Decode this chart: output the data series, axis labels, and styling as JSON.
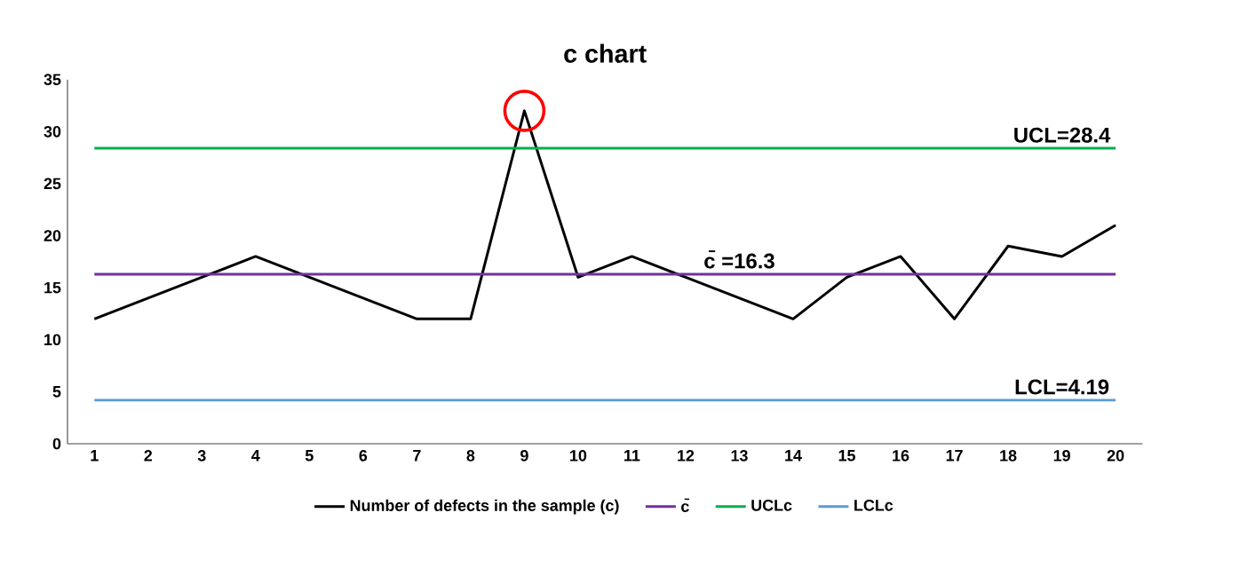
{
  "chart_data": {
    "type": "line",
    "title": "c chart",
    "categories": [
      "1",
      "2",
      "3",
      "4",
      "5",
      "6",
      "7",
      "8",
      "9",
      "10",
      "11",
      "12",
      "13",
      "14",
      "15",
      "16",
      "17",
      "18",
      "19",
      "20"
    ],
    "series": [
      {
        "name": "Number of defects in the sample (c)",
        "color": "#000000",
        "values": [
          12,
          14,
          16,
          18,
          16,
          14,
          12,
          12,
          32,
          16,
          18,
          16,
          14,
          12,
          16,
          18,
          12,
          19,
          18,
          21
        ]
      },
      {
        "name": "c̄",
        "color": "#7030a0",
        "values": [
          16.3,
          16.3,
          16.3,
          16.3,
          16.3,
          16.3,
          16.3,
          16.3,
          16.3,
          16.3,
          16.3,
          16.3,
          16.3,
          16.3,
          16.3,
          16.3,
          16.3,
          16.3,
          16.3,
          16.3
        ]
      },
      {
        "name": "UCLc",
        "color": "#00b050",
        "values": [
          28.4,
          28.4,
          28.4,
          28.4,
          28.4,
          28.4,
          28.4,
          28.4,
          28.4,
          28.4,
          28.4,
          28.4,
          28.4,
          28.4,
          28.4,
          28.4,
          28.4,
          28.4,
          28.4,
          28.4
        ]
      },
      {
        "name": "LCLc",
        "color": "#5b9bd5",
        "values": [
          4.19,
          4.19,
          4.19,
          4.19,
          4.19,
          4.19,
          4.19,
          4.19,
          4.19,
          4.19,
          4.19,
          4.19,
          4.19,
          4.19,
          4.19,
          4.19,
          4.19,
          4.19,
          4.19,
          4.19
        ]
      }
    ],
    "annotations": [
      {
        "text": "UCL=28.4",
        "x": "19",
        "y": 28.4
      },
      {
        "text": "c̄ =16.3",
        "x": "13",
        "y": 16.3
      },
      {
        "text": "LCL=4.19",
        "x": "19",
        "y": 4.19
      }
    ],
    "ylim": [
      0,
      35
    ],
    "yticks": [
      0,
      5,
      10,
      15,
      20,
      25,
      30,
      35
    ],
    "legend": "bottom",
    "marker": "none",
    "line_style": "solid",
    "grid": false
  }
}
